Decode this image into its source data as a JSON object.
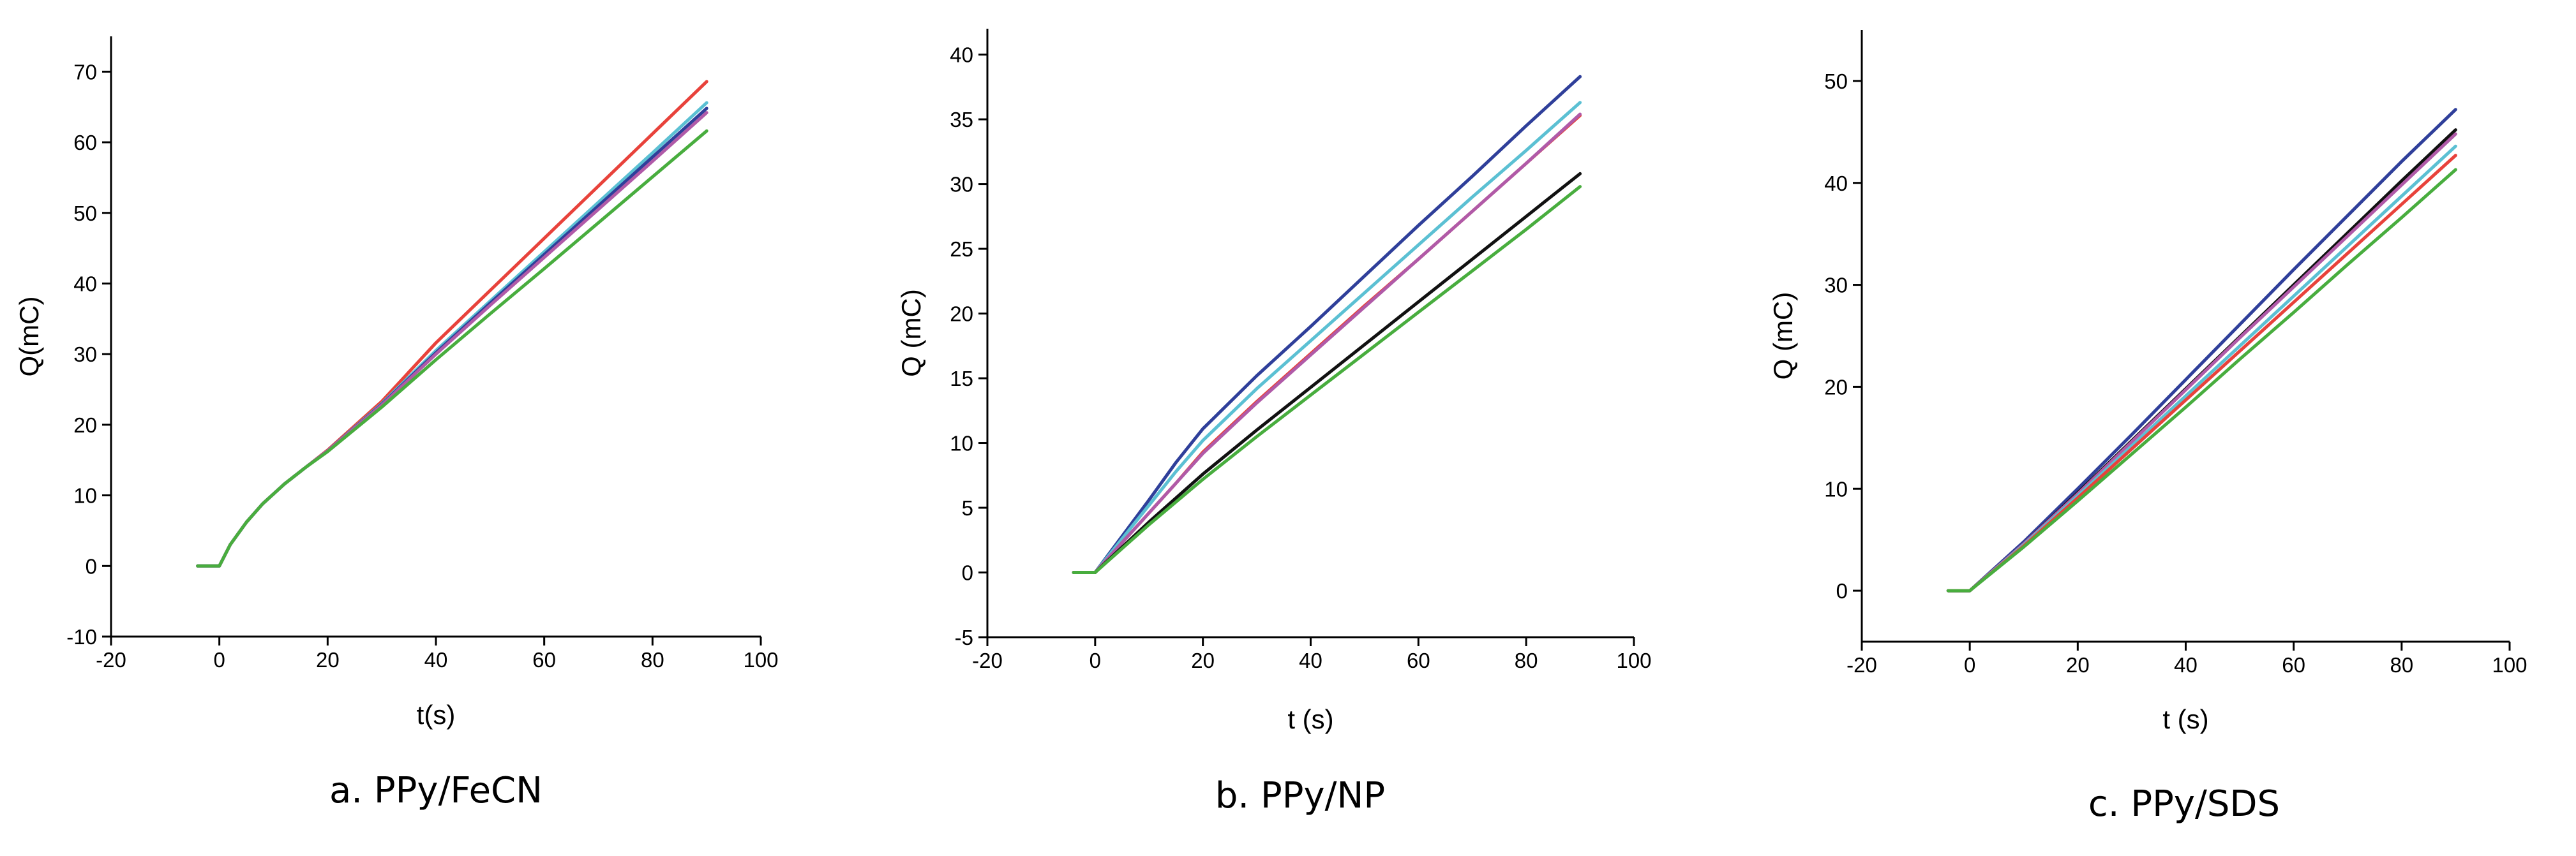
{
  "chart_data": [
    {
      "type": "line",
      "caption": "a. PPy/FeCN",
      "xlabel": "t(s)",
      "ylabel": "Q(mC)",
      "xlim": [
        -20,
        100
      ],
      "ylim": [
        -10,
        75
      ],
      "xticks": [
        -20,
        0,
        20,
        40,
        60,
        80,
        100
      ],
      "yticks": [
        -10,
        0,
        10,
        20,
        30,
        40,
        50,
        60,
        70
      ],
      "grid": false,
      "series": [
        {
          "color": "#e8423b",
          "x": [
            -4,
            0,
            2,
            5,
            8,
            12,
            16,
            20,
            30,
            40,
            50,
            60,
            70,
            80,
            90
          ],
          "y": [
            0,
            0,
            3.0,
            6.2,
            8.8,
            11.6,
            14.0,
            16.4,
            23.3,
            31.6,
            39.0,
            46.4,
            53.8,
            61.2,
            68.6
          ]
        },
        {
          "color": "#5bc0d3",
          "x": [
            -4,
            0,
            2,
            5,
            8,
            12,
            16,
            20,
            30,
            40,
            50,
            60,
            70,
            80,
            90
          ],
          "y": [
            0,
            0,
            3.0,
            6.2,
            8.8,
            11.6,
            14.0,
            16.3,
            23.0,
            30.5,
            37.5,
            44.5,
            51.5,
            58.5,
            65.6
          ]
        },
        {
          "color": "#2f3f9a",
          "x": [
            -4,
            0,
            2,
            5,
            8,
            12,
            16,
            20,
            30,
            40,
            50,
            60,
            70,
            80,
            90
          ],
          "y": [
            0,
            0,
            3.0,
            6.2,
            8.8,
            11.6,
            14.0,
            16.3,
            22.9,
            30.2,
            37.2,
            44.1,
            51.0,
            57.9,
            64.8
          ]
        },
        {
          "color": "#b05aa8",
          "x": [
            -4,
            0,
            2,
            5,
            8,
            12,
            16,
            20,
            30,
            40,
            50,
            60,
            70,
            80,
            90
          ],
          "y": [
            0,
            0,
            3.0,
            6.2,
            8.8,
            11.6,
            14.0,
            16.3,
            22.8,
            30.0,
            36.9,
            43.7,
            50.5,
            57.3,
            64.2
          ]
        },
        {
          "color": "#48ad3e",
          "x": [
            -4,
            0,
            2,
            5,
            8,
            12,
            16,
            20,
            30,
            40,
            50,
            60,
            70,
            80,
            90
          ],
          "y": [
            0,
            0,
            3.0,
            6.2,
            8.8,
            11.6,
            14.0,
            16.2,
            22.5,
            29.2,
            35.7,
            42.1,
            48.6,
            55.1,
            61.6
          ]
        }
      ]
    },
    {
      "type": "line",
      "caption": "b. PPy/NP",
      "xlabel": "t (s)",
      "ylabel": "Q (mC)",
      "xlim": [
        -20,
        100
      ],
      "ylim": [
        -5,
        42
      ],
      "xticks": [
        -20,
        0,
        20,
        40,
        60,
        80,
        100
      ],
      "yticks": [
        -5,
        0,
        5,
        10,
        15,
        20,
        25,
        30,
        35,
        40
      ],
      "grid": false,
      "series": [
        {
          "color": "#2f3f9a",
          "x": [
            -4,
            0,
            5,
            10,
            15,
            20,
            30,
            40,
            50,
            60,
            70,
            80,
            90
          ],
          "y": [
            0,
            0,
            2.8,
            5.6,
            8.5,
            11.1,
            15.2,
            19.0,
            22.9,
            26.8,
            30.6,
            34.5,
            38.3
          ]
        },
        {
          "color": "#5bc0d3",
          "x": [
            -4,
            0,
            5,
            10,
            15,
            20,
            30,
            40,
            50,
            60,
            70,
            80,
            90
          ],
          "y": [
            0,
            0,
            2.6,
            5.2,
            7.8,
            10.2,
            14.2,
            17.9,
            21.6,
            25.3,
            29.0,
            32.6,
            36.3
          ]
        },
        {
          "color": "#e8423b",
          "x": [
            -4,
            0,
            5,
            10,
            15,
            20,
            30,
            40,
            50,
            60,
            70,
            80,
            90
          ],
          "y": [
            0,
            0,
            2.3,
            4.6,
            6.9,
            9.3,
            13.2,
            16.9,
            20.6,
            24.2,
            27.9,
            31.6,
            35.3
          ]
        },
        {
          "color": "#b05aa8",
          "x": [
            -4,
            0,
            5,
            10,
            15,
            20,
            30,
            40,
            50,
            60,
            70,
            80,
            90
          ],
          "y": [
            0,
            0,
            2.3,
            4.6,
            6.9,
            9.2,
            13.1,
            16.8,
            20.5,
            24.2,
            27.9,
            31.6,
            35.4
          ]
        },
        {
          "color": "#111111",
          "x": [
            -4,
            0,
            10,
            20,
            30,
            40,
            50,
            60,
            70,
            80,
            90
          ],
          "y": [
            0,
            0,
            3.9,
            7.6,
            11.0,
            14.3,
            17.6,
            20.9,
            24.2,
            27.5,
            30.8
          ]
        },
        {
          "color": "#48ad3e",
          "x": [
            -4,
            0,
            10,
            20,
            30,
            40,
            50,
            60,
            70,
            80,
            90
          ],
          "y": [
            0,
            0,
            3.7,
            7.2,
            10.5,
            13.7,
            16.9,
            20.1,
            23.3,
            26.5,
            29.8
          ]
        }
      ]
    },
    {
      "type": "line",
      "caption": "c. PPy/SDS",
      "xlabel": "t (s)",
      "ylabel": "Q (mC)",
      "xlim": [
        -20,
        100
      ],
      "ylim": [
        -5,
        55
      ],
      "xticks": [
        -20,
        0,
        20,
        40,
        60,
        80,
        100
      ],
      "yticks": [
        0,
        10,
        20,
        30,
        40,
        50
      ],
      "grid": false,
      "series": [
        {
          "color": "#2f3f9a",
          "x": [
            -4,
            0,
            10,
            20,
            30,
            40,
            50,
            60,
            70,
            80,
            90
          ],
          "y": [
            0,
            0,
            4.8,
            10.0,
            15.3,
            20.7,
            26.1,
            31.5,
            36.8,
            42.1,
            47.2
          ]
        },
        {
          "color": "#111111",
          "x": [
            -4,
            0,
            10,
            20,
            30,
            40,
            50,
            60,
            70,
            80,
            90
          ],
          "y": [
            0,
            0,
            4.6,
            9.6,
            14.7,
            19.8,
            24.9,
            30.0,
            35.1,
            40.2,
            45.2
          ]
        },
        {
          "color": "#b05aa8",
          "x": [
            -4,
            0,
            10,
            20,
            30,
            40,
            50,
            60,
            70,
            80,
            90
          ],
          "y": [
            0,
            0,
            4.6,
            9.5,
            14.6,
            19.7,
            24.8,
            29.8,
            34.8,
            39.8,
            44.8
          ]
        },
        {
          "color": "#5bc0d3",
          "x": [
            -4,
            0,
            10,
            20,
            30,
            40,
            50,
            60,
            70,
            80,
            90
          ],
          "y": [
            0,
            0,
            4.5,
            9.3,
            14.2,
            19.1,
            24.0,
            28.9,
            33.8,
            38.7,
            43.6
          ]
        },
        {
          "color": "#e8423b",
          "x": [
            -4,
            0,
            10,
            20,
            30,
            40,
            50,
            60,
            70,
            80,
            90
          ],
          "y": [
            0,
            0,
            4.4,
            9.1,
            13.9,
            18.7,
            23.5,
            28.3,
            33.1,
            37.9,
            42.7
          ]
        },
        {
          "color": "#48ad3e",
          "x": [
            -4,
            0,
            10,
            20,
            30,
            40,
            50,
            60,
            70,
            80,
            90
          ],
          "y": [
            0,
            0,
            4.3,
            8.8,
            13.4,
            18.0,
            22.7,
            27.3,
            32.0,
            36.6,
            41.3
          ]
        }
      ]
    }
  ]
}
